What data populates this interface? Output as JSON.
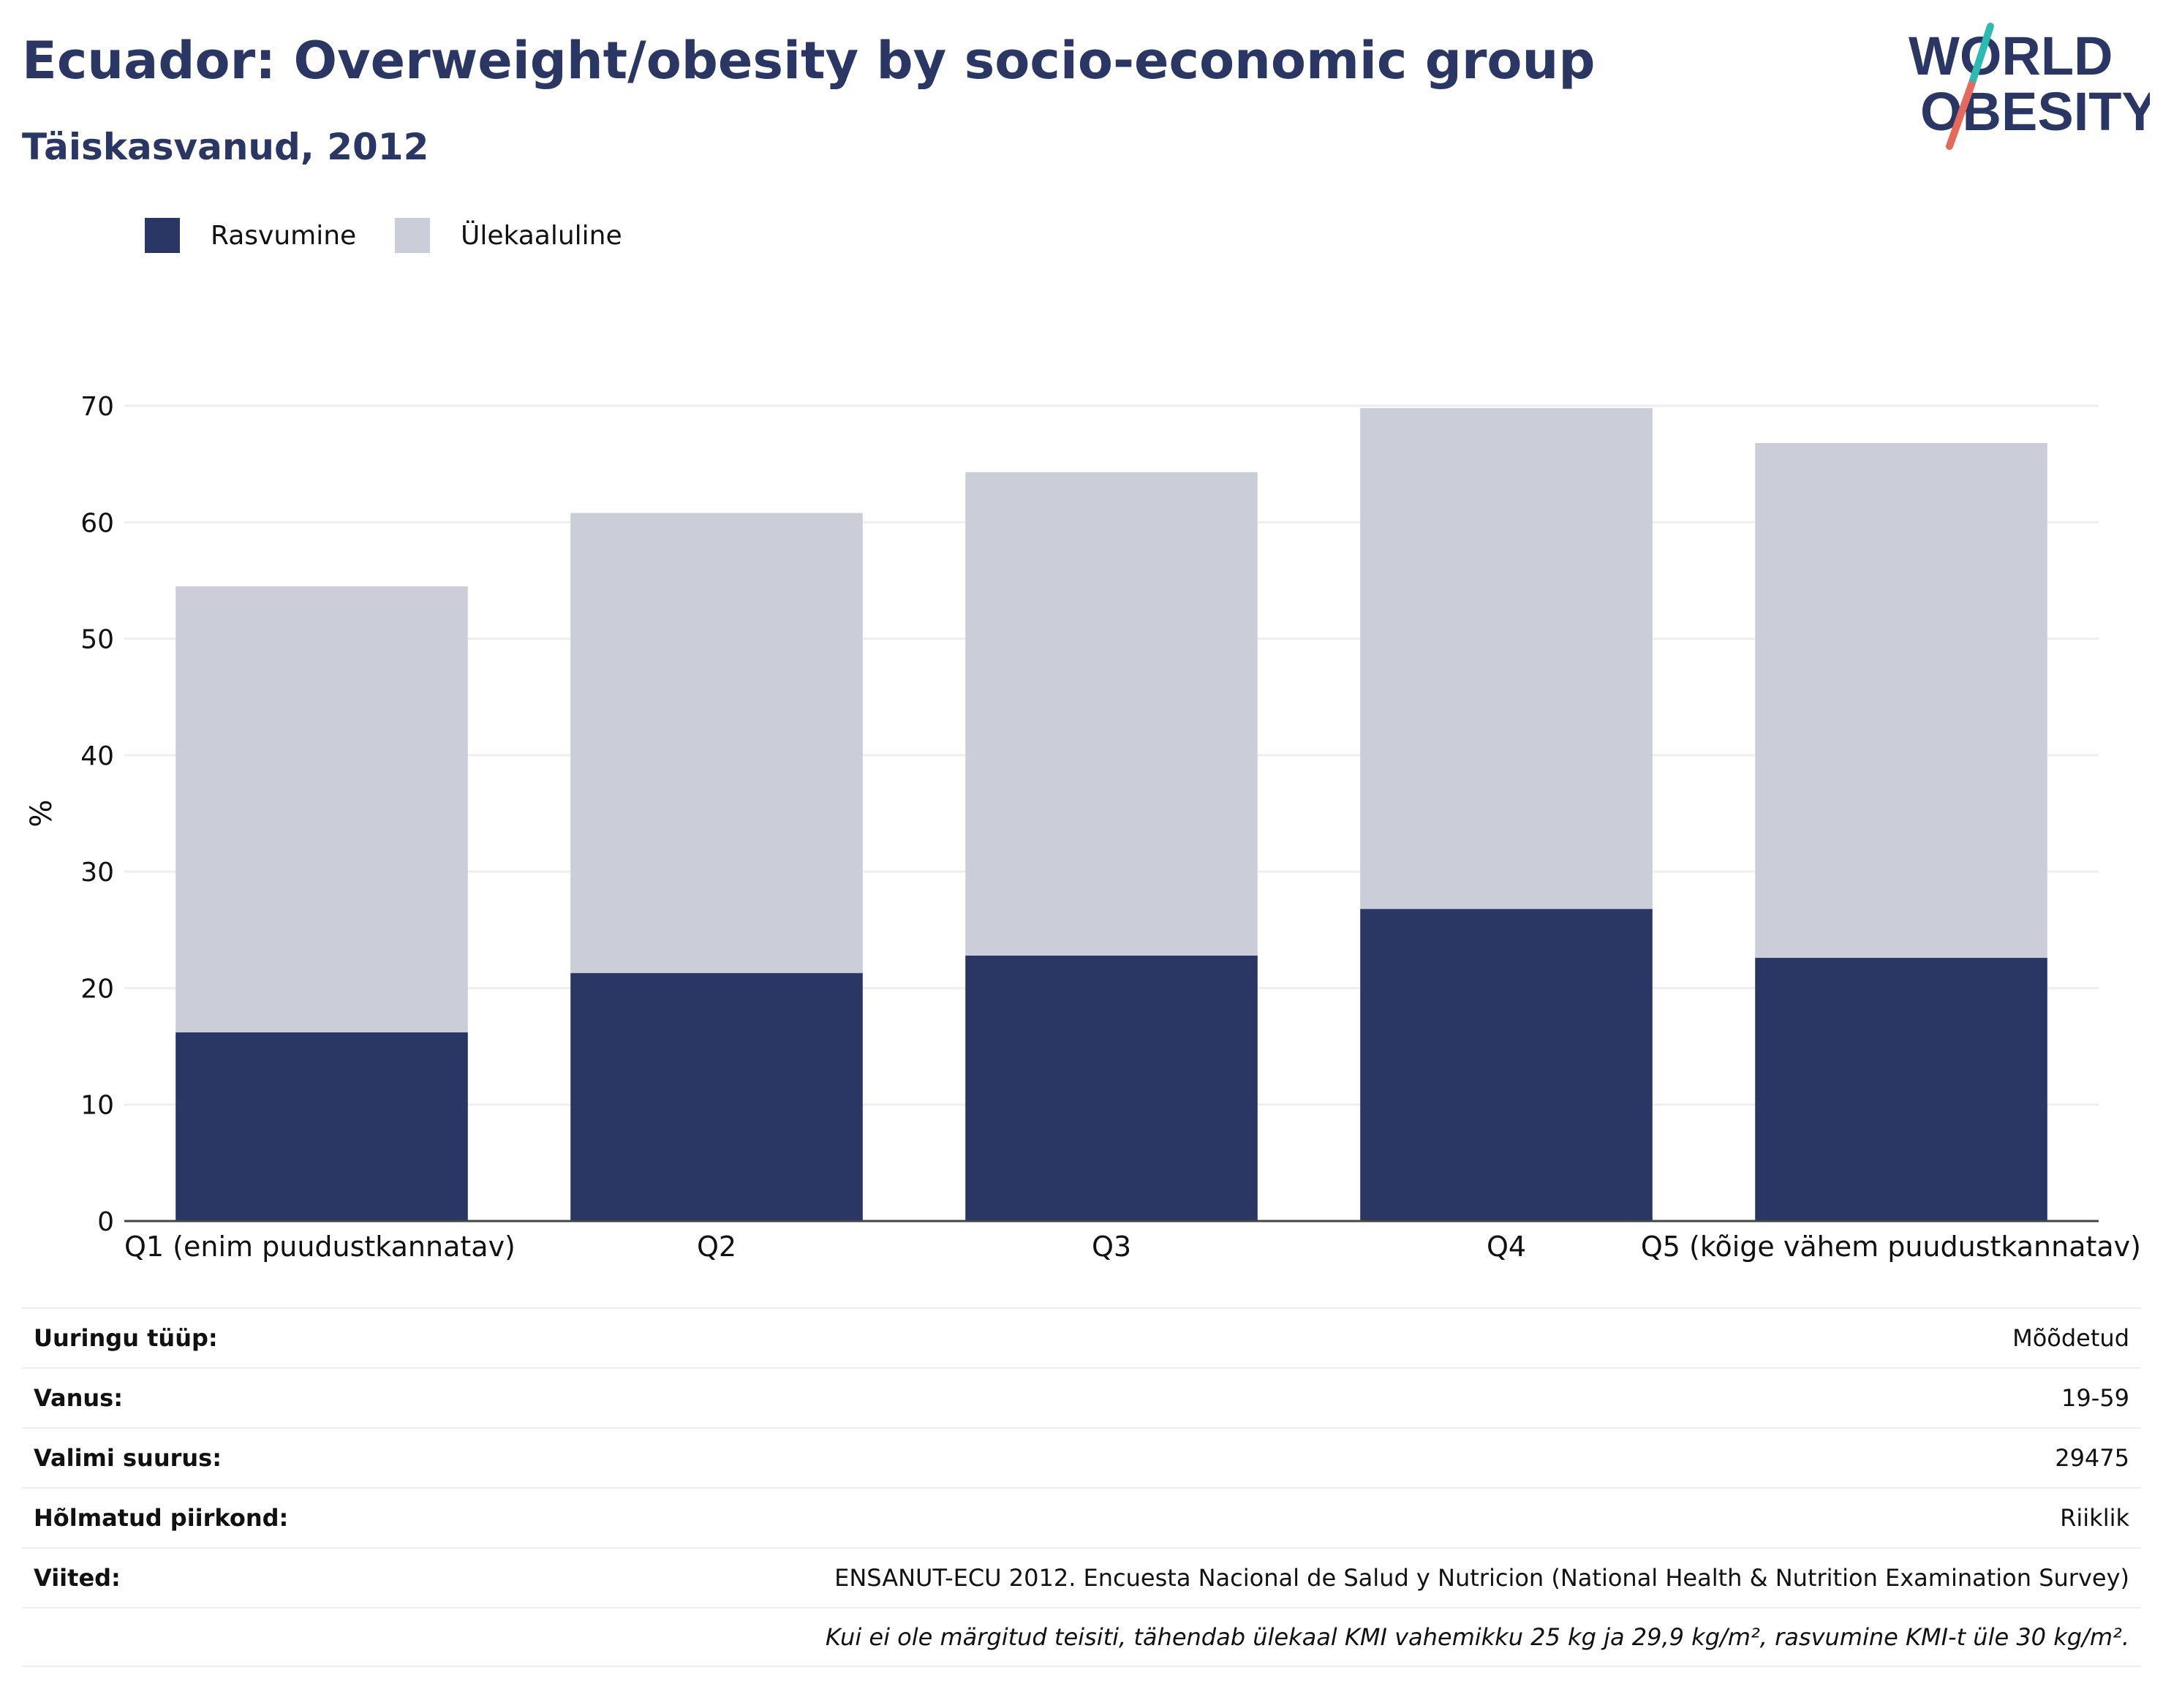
{
  "header": {
    "title": "Ecuador: Overweight/obesity by socio-economic group",
    "subtitle": "Täiskasvanud, 2012"
  },
  "logo": {
    "line1": "WORLD",
    "line2": "OBESITY",
    "colors": {
      "text": "#2a3663",
      "slash_top": "#2bbbb0",
      "slash_bottom": "#e66a5b"
    }
  },
  "legend": [
    {
      "label": "Rasvumine",
      "color": "#2a3663"
    },
    {
      "label": "Ülekaaluline",
      "color": "#cbcdd8"
    }
  ],
  "chart_data": {
    "type": "bar",
    "stacked": true,
    "categories": [
      "Q1 (enim puudustkannatav)",
      "Q2",
      "Q3",
      "Q4",
      "Q5 (kõige vähem puudustkannatav)"
    ],
    "series": [
      {
        "name": "Rasvumine",
        "color": "#2a3663",
        "values": [
          16.2,
          21.3,
          22.8,
          26.8,
          22.6
        ]
      },
      {
        "name": "Ülekaaluline",
        "color": "#cbcdd8",
        "values": [
          38.3,
          39.5,
          41.5,
          43.0,
          44.2
        ]
      }
    ],
    "ylabel": "%",
    "xlabel": "",
    "ylim": [
      0,
      70
    ],
    "yticks": [
      0,
      10,
      20,
      30,
      40,
      50,
      60,
      70
    ],
    "grid": true,
    "legend_position": "top-left"
  },
  "meta": {
    "rows": [
      {
        "key": "Uuringu tüüp:",
        "value": "Mõõdetud"
      },
      {
        "key": "Vanus:",
        "value": "19-59"
      },
      {
        "key": "Valimi suurus:",
        "value": "29475"
      },
      {
        "key": "Hõlmatud piirkond:",
        "value": "Riiklik"
      },
      {
        "key": "Viited:",
        "value": "ENSANUT-ECU 2012. Encuesta Nacional de Salud y Nutricion (National Health & Nutrition Examination Survey)"
      }
    ],
    "note": "Kui ei ole märgitud teisiti, tähendab ülekaal KMI vahemikku 25 kg ja 29,9 kg/m², rasvumine KMI-t üle 30 kg/m²."
  }
}
